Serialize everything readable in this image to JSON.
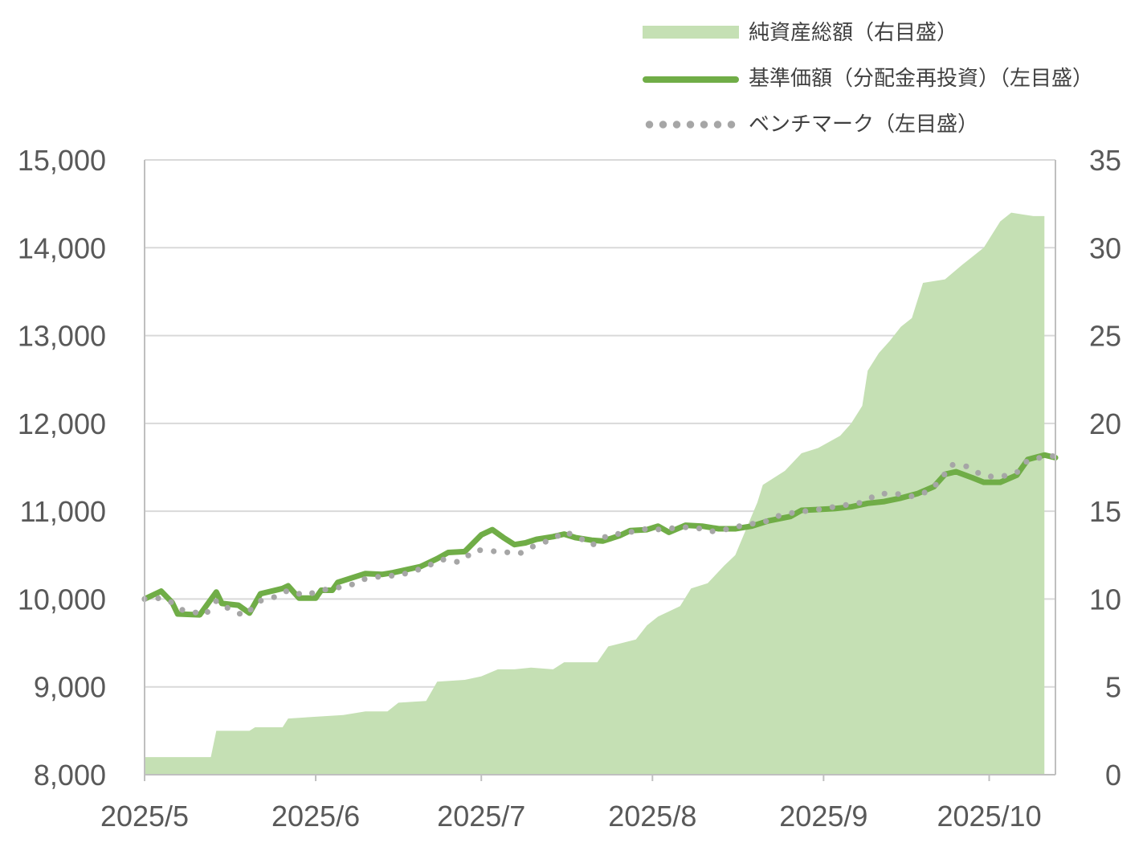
{
  "legend": {
    "nav": "純資産総額（右目盛）",
    "price": "基準価額（分配金再投資）（左目盛）",
    "benchmark": "ベンチマーク（左目盛）"
  },
  "colors": {
    "area": "#c5e0b4",
    "line": "#70ad47",
    "dots": "#a6a6a6",
    "grid": "#d9d9d9",
    "axis": "#595959"
  },
  "chart_data": {
    "type": "line",
    "left_axis": {
      "min": 8000,
      "max": 15000,
      "step": 1000,
      "ticks": [
        "8,000",
        "9,000",
        "10,000",
        "11,000",
        "12,000",
        "13,000",
        "14,000",
        "15,000"
      ]
    },
    "right_axis": {
      "min": 0,
      "max": 35,
      "step": 5,
      "ticks": [
        "0",
        "5",
        "10",
        "15",
        "20",
        "25",
        "30",
        "35"
      ]
    },
    "x_range": [
      0,
      165
    ],
    "x_ticks": [
      {
        "label": "2025/5",
        "x": 0
      },
      {
        "label": "2025/6",
        "x": 31
      },
      {
        "label": "2025/7",
        "x": 61
      },
      {
        "label": "2025/8",
        "x": 92
      },
      {
        "label": "2025/9",
        "x": 123
      },
      {
        "label": "2025/10",
        "x": 153
      }
    ],
    "series": [
      {
        "name": "純資産総額（右目盛）",
        "axis": "right",
        "type": "area",
        "points": [
          [
            0,
            1.0
          ],
          [
            6,
            1.0
          ],
          [
            9,
            1.0
          ],
          [
            12,
            1.0
          ],
          [
            13,
            2.5
          ],
          [
            16,
            2.5
          ],
          [
            19,
            2.5
          ],
          [
            20,
            2.7
          ],
          [
            25,
            2.7
          ],
          [
            26,
            3.2
          ],
          [
            31,
            3.3
          ],
          [
            36,
            3.4
          ],
          [
            40,
            3.6
          ],
          [
            44,
            3.6
          ],
          [
            46,
            4.1
          ],
          [
            51,
            4.2
          ],
          [
            53,
            5.3
          ],
          [
            58,
            5.4
          ],
          [
            61,
            5.6
          ],
          [
            64,
            6.0
          ],
          [
            67,
            6.0
          ],
          [
            70,
            6.1
          ],
          [
            74,
            6.0
          ],
          [
            76,
            6.4
          ],
          [
            79,
            6.4
          ],
          [
            82,
            6.4
          ],
          [
            84,
            7.3
          ],
          [
            89,
            7.7
          ],
          [
            91,
            8.5
          ],
          [
            93,
            9.0
          ],
          [
            97,
            9.6
          ],
          [
            99,
            10.6
          ],
          [
            102,
            10.9
          ],
          [
            105,
            11.9
          ],
          [
            107,
            12.5
          ],
          [
            109,
            14.0
          ],
          [
            111,
            15.5
          ],
          [
            112,
            16.5
          ],
          [
            116,
            17.3
          ],
          [
            119,
            18.3
          ],
          [
            122,
            18.6
          ],
          [
            126,
            19.3
          ],
          [
            128,
            20.0
          ],
          [
            130,
            21.0
          ],
          [
            131,
            23.0
          ],
          [
            133,
            24.0
          ],
          [
            135,
            24.7
          ],
          [
            137,
            25.5
          ],
          [
            139,
            26.0
          ],
          [
            141,
            28.0
          ],
          [
            145,
            28.2
          ],
          [
            148,
            29.0
          ],
          [
            150,
            29.5
          ],
          [
            152,
            30.0
          ],
          [
            155,
            31.5
          ],
          [
            157,
            32.0
          ],
          [
            161,
            31.8
          ],
          [
            163,
            31.8
          ]
        ]
      },
      {
        "name": "基準価額（分配金再投資）（左目盛）",
        "axis": "left",
        "type": "line",
        "points": [
          [
            0,
            10000
          ],
          [
            3,
            10090
          ],
          [
            5,
            9960
          ],
          [
            6,
            9830
          ],
          [
            10,
            9820
          ],
          [
            13,
            10080
          ],
          [
            14,
            9950
          ],
          [
            17,
            9930
          ],
          [
            19,
            9840
          ],
          [
            21,
            10060
          ],
          [
            25,
            10120
          ],
          [
            26,
            10150
          ],
          [
            28,
            10010
          ],
          [
            31,
            10010
          ],
          [
            32,
            10100
          ],
          [
            34,
            10100
          ],
          [
            35,
            10190
          ],
          [
            38,
            10250
          ],
          [
            40,
            10290
          ],
          [
            43,
            10280
          ],
          [
            45,
            10300
          ],
          [
            50,
            10370
          ],
          [
            53,
            10460
          ],
          [
            55,
            10530
          ],
          [
            58,
            10540
          ],
          [
            61,
            10730
          ],
          [
            63,
            10790
          ],
          [
            65,
            10700
          ],
          [
            67,
            10620
          ],
          [
            69,
            10640
          ],
          [
            71,
            10680
          ],
          [
            74,
            10710
          ],
          [
            76,
            10740
          ],
          [
            78,
            10700
          ],
          [
            81,
            10670
          ],
          [
            83,
            10660
          ],
          [
            86,
            10720
          ],
          [
            88,
            10780
          ],
          [
            91,
            10790
          ],
          [
            93,
            10830
          ],
          [
            95,
            10760
          ],
          [
            98,
            10840
          ],
          [
            101,
            10830
          ],
          [
            104,
            10800
          ],
          [
            107,
            10800
          ],
          [
            110,
            10830
          ],
          [
            113,
            10890
          ],
          [
            117,
            10940
          ],
          [
            119,
            11010
          ],
          [
            122,
            11020
          ],
          [
            125,
            11030
          ],
          [
            128,
            11050
          ],
          [
            131,
            11090
          ],
          [
            134,
            11110
          ],
          [
            137,
            11150
          ],
          [
            140,
            11200
          ],
          [
            143,
            11280
          ],
          [
            145,
            11420
          ],
          [
            147,
            11450
          ],
          [
            150,
            11380
          ],
          [
            152,
            11330
          ],
          [
            155,
            11330
          ],
          [
            158,
            11410
          ],
          [
            160,
            11590
          ],
          [
            163,
            11640
          ],
          [
            165,
            11610
          ]
        ]
      },
      {
        "name": "ベンチマーク（左目盛）",
        "axis": "left",
        "type": "dotted",
        "points": [
          [
            0,
            10000
          ],
          [
            3,
            10010
          ],
          [
            5,
            9960
          ],
          [
            7,
            9870
          ],
          [
            9,
            9850
          ],
          [
            11,
            9820
          ],
          [
            13,
            9980
          ],
          [
            15,
            9900
          ],
          [
            18,
            9810
          ],
          [
            21,
            9980
          ],
          [
            24,
            10030
          ],
          [
            26,
            10100
          ],
          [
            29,
            10040
          ],
          [
            32,
            10100
          ],
          [
            34,
            10120
          ],
          [
            37,
            10150
          ],
          [
            40,
            10230
          ],
          [
            43,
            10260
          ],
          [
            46,
            10270
          ],
          [
            49,
            10320
          ],
          [
            51,
            10370
          ],
          [
            54,
            10450
          ],
          [
            57,
            10420
          ],
          [
            60,
            10560
          ],
          [
            64,
            10540
          ],
          [
            68,
            10520
          ],
          [
            71,
            10620
          ],
          [
            74,
            10680
          ],
          [
            76,
            10770
          ],
          [
            79,
            10690
          ],
          [
            81,
            10610
          ],
          [
            84,
            10730
          ],
          [
            87,
            10750
          ],
          [
            91,
            10800
          ],
          [
            94,
            10790
          ],
          [
            97,
            10820
          ],
          [
            100,
            10810
          ],
          [
            103,
            10770
          ],
          [
            106,
            10800
          ],
          [
            109,
            10850
          ],
          [
            112,
            10870
          ],
          [
            115,
            10950
          ],
          [
            118,
            10990
          ],
          [
            121,
            11010
          ],
          [
            124,
            11040
          ],
          [
            127,
            11070
          ],
          [
            130,
            11100
          ],
          [
            133,
            11200
          ],
          [
            136,
            11200
          ],
          [
            139,
            11170
          ],
          [
            141,
            11200
          ],
          [
            144,
            11330
          ],
          [
            146,
            11530
          ],
          [
            149,
            11510
          ],
          [
            152,
            11400
          ],
          [
            155,
            11390
          ],
          [
            158,
            11440
          ],
          [
            160,
            11580
          ],
          [
            163,
            11620
          ],
          [
            165,
            11630
          ]
        ]
      }
    ]
  }
}
